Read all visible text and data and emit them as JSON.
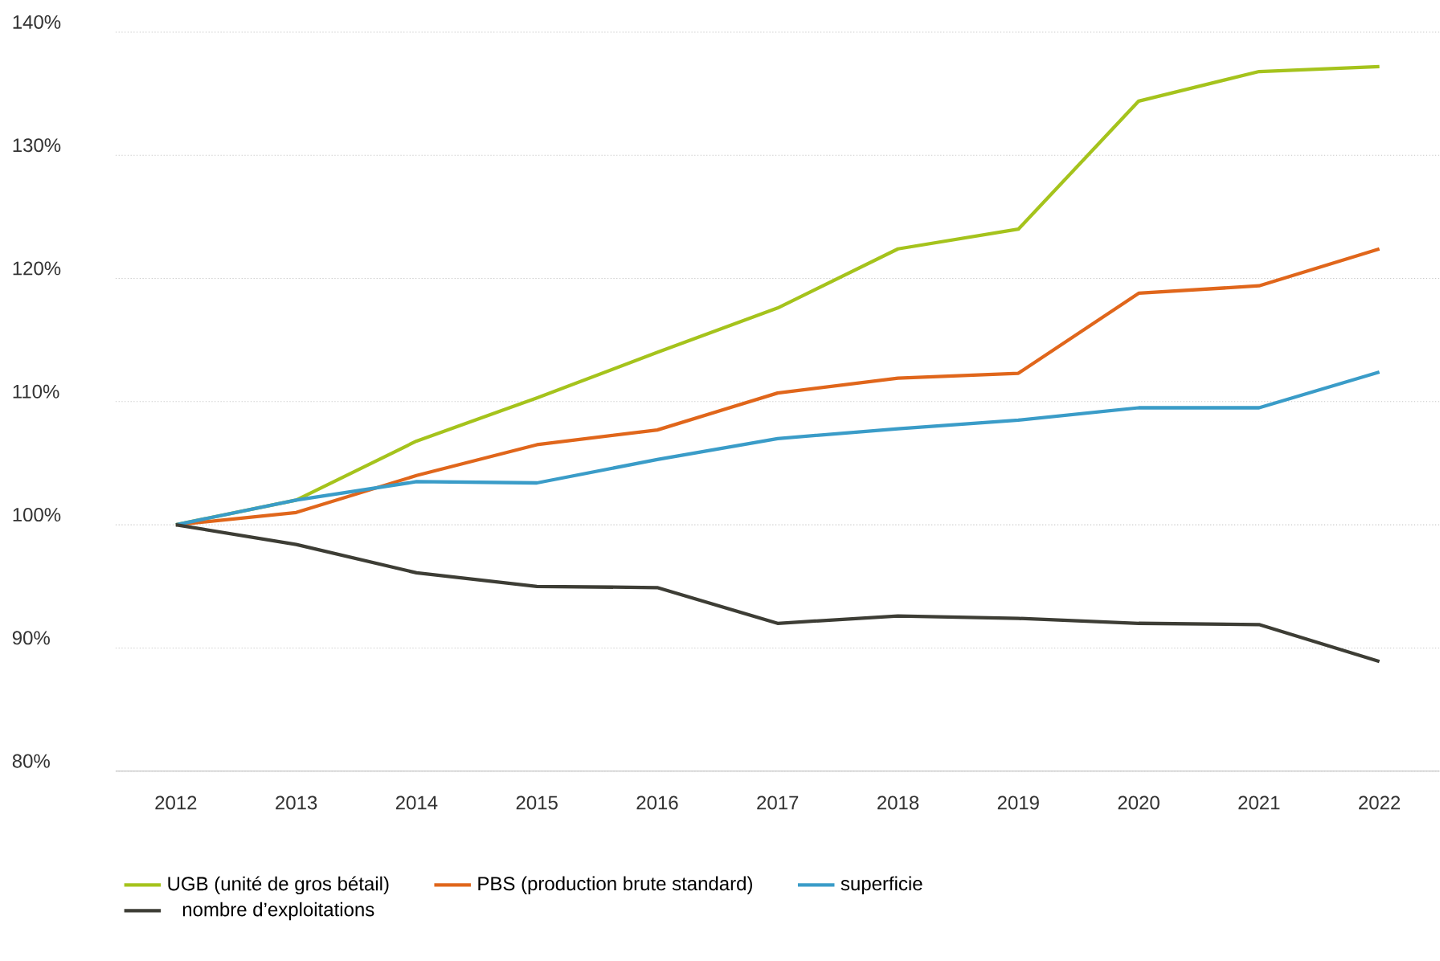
{
  "chart_data": {
    "type": "line",
    "categories": [
      "2012",
      "2013",
      "2014",
      "2015",
      "2016",
      "2017",
      "2018",
      "2019",
      "2020",
      "2021",
      "2022"
    ],
    "series": [
      {
        "name": "UGB (unité de gros bétail)",
        "color": "#a5c31c",
        "values": [
          100,
          102.0,
          106.8,
          110.3,
          114.0,
          117.6,
          122.4,
          124.0,
          134.4,
          136.8,
          137.2
        ]
      },
      {
        "name": "PBS (production brute standard)",
        "color": "#e0661b",
        "values": [
          100,
          101.0,
          104.0,
          106.5,
          107.7,
          110.7,
          111.9,
          112.3,
          118.8,
          119.4,
          122.4
        ]
      },
      {
        "name": "superficie",
        "color": "#3a9cc8",
        "values": [
          100,
          102.0,
          103.5,
          103.4,
          105.3,
          107.0,
          107.8,
          108.5,
          109.5,
          109.5,
          112.4
        ]
      },
      {
        "name": "nombre d’exploitations",
        "color": "#3d3d35",
        "values": [
          100,
          98.4,
          96.1,
          95.0,
          94.9,
          92.0,
          92.6,
          92.4,
          92.0,
          91.9,
          88.9
        ]
      }
    ],
    "ylim": [
      80,
      140
    ],
    "yticks": [
      {
        "value": 80,
        "label": "80%"
      },
      {
        "value": 90,
        "label": "90%"
      },
      {
        "value": 100,
        "label": "100%"
      },
      {
        "value": 110,
        "label": "110%"
      },
      {
        "value": 120,
        "label": "120%"
      },
      {
        "value": 130,
        "label": "130%"
      },
      {
        "value": 140,
        "label": "140%"
      }
    ],
    "grid": "y",
    "legend": "bottom",
    "marker": "none",
    "line_style": "solid"
  }
}
